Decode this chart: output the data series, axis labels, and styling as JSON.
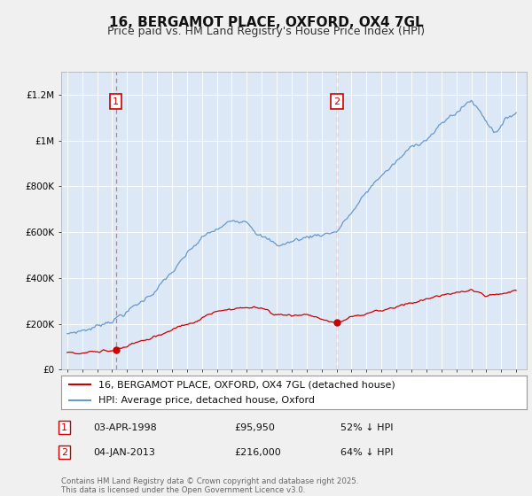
{
  "title": "16, BERGAMOT PLACE, OXFORD, OX4 7GL",
  "subtitle": "Price paid vs. HM Land Registry's House Price Index (HPI)",
  "ylim": [
    0,
    1300000
  ],
  "yticks": [
    0,
    200000,
    400000,
    600000,
    800000,
    1000000,
    1200000
  ],
  "ytick_labels": [
    "£0",
    "£200K",
    "£400K",
    "£600K",
    "£800K",
    "£1M",
    "£1.2M"
  ],
  "background_color": "#f0f0f0",
  "plot_bg": "#dce8f5",
  "grid_color": "#ffffff",
  "red_color": "#cc0000",
  "blue_color": "#6699cc",
  "marker1_year": 1998.25,
  "marker1_price": 95950,
  "marker1_date": "03-APR-1998",
  "marker1_pct": "52% ↓ HPI",
  "marker2_year": 2013.01,
  "marker2_price": 216000,
  "marker2_date": "04-JAN-2013",
  "marker2_pct": "64% ↓ HPI",
  "legend_entry1": "16, BERGAMOT PLACE, OXFORD, OX4 7GL (detached house)",
  "legend_entry2": "HPI: Average price, detached house, Oxford",
  "footer": "Contains HM Land Registry data © Crown copyright and database right 2025.\nThis data is licensed under the Open Government Licence v3.0.",
  "title_fontsize": 11,
  "subtitle_fontsize": 9,
  "axis_fontsize": 7.5,
  "legend_fontsize": 8
}
